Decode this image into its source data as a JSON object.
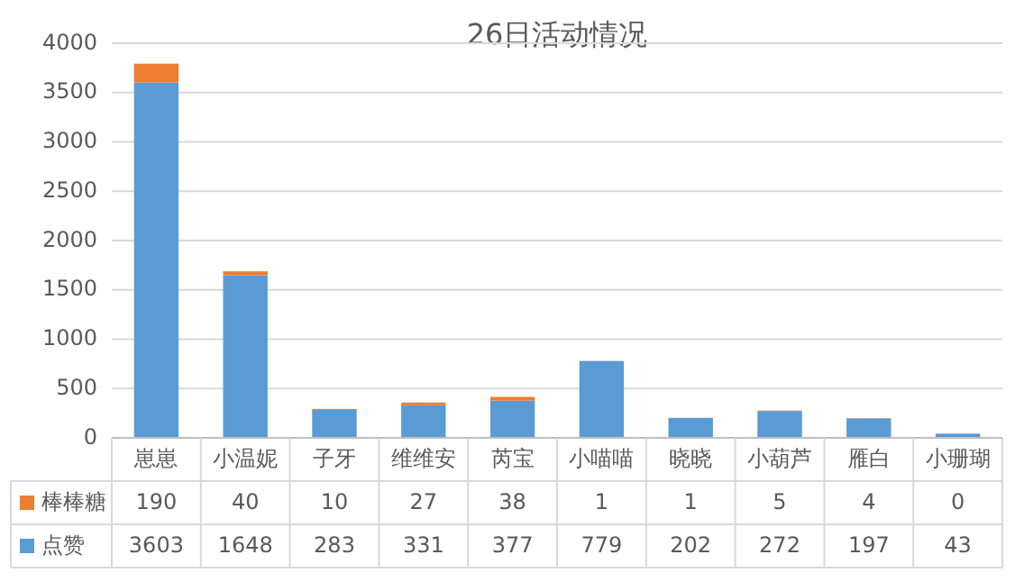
{
  "chart_data": {
    "type": "bar",
    "title": "26日活动情况",
    "stacked": true,
    "categories": [
      "崽崽",
      "小温妮",
      "子牙",
      "维维安",
      "芮宝",
      "小喵喵",
      "晓晓",
      "小葫芦",
      "雁白",
      "小珊瑚"
    ],
    "series": [
      {
        "name": "点赞",
        "color": "#5b9bd5",
        "values": [
          3603,
          1648,
          283,
          331,
          377,
          779,
          202,
          272,
          197,
          43
        ]
      },
      {
        "name": "棒棒糖",
        "color": "#ed7d31",
        "values": [
          190,
          40,
          10,
          27,
          38,
          1,
          1,
          5,
          4,
          0
        ]
      }
    ],
    "ylim": [
      0,
      4000
    ],
    "yticks": [
      0,
      500,
      1000,
      1500,
      2000,
      2500,
      3000,
      3500,
      4000
    ],
    "grid": "y",
    "legend": "bottom",
    "data_labels": true
  }
}
